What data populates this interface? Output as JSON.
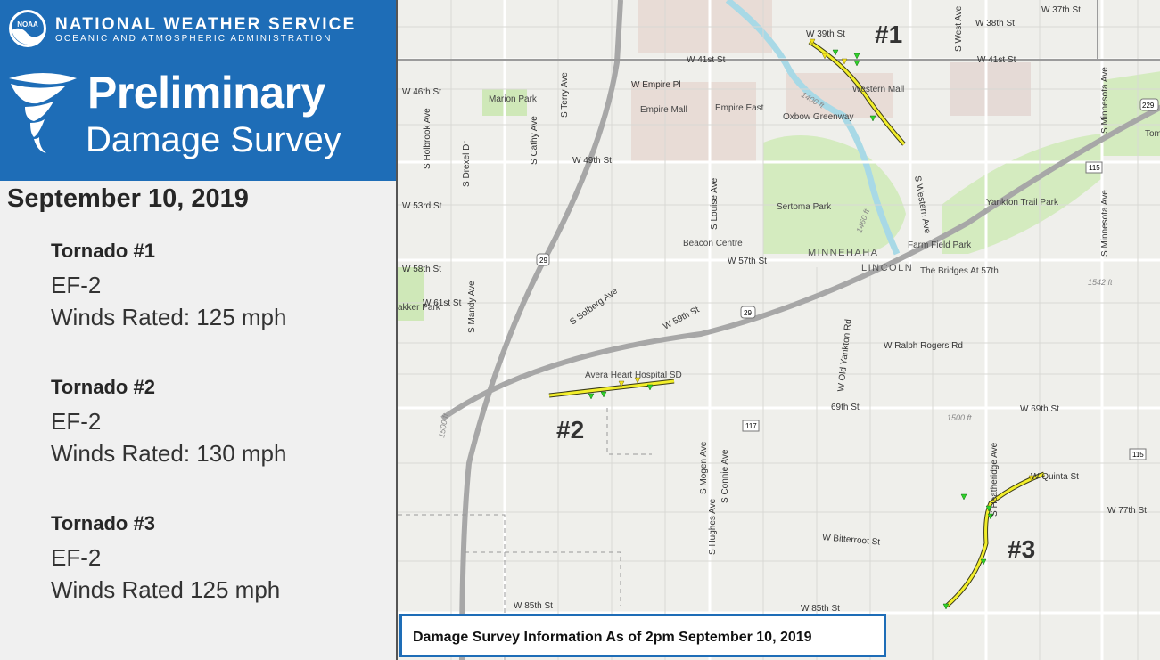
{
  "header": {
    "logo_text": "NOAA",
    "org_name": "NATIONAL WEATHER SERVICE",
    "org_sub": "OCEANIC AND ATMOSPHERIC ADMINISTRATION",
    "title_line1": "Preliminary",
    "title_line2": "Damage Survey"
  },
  "date": "September 10, 2019",
  "tornadoes": [
    {
      "name": "Tornado #1",
      "rating": "EF-2",
      "winds": "Winds Rated: 125 mph"
    },
    {
      "name": "Tornado #2",
      "rating": "EF-2",
      "winds": "Winds Rated: 130 mph"
    },
    {
      "name": "Tornado #3",
      "rating": "EF-2",
      "winds": "Winds Rated 125 mph"
    }
  ],
  "map": {
    "track_labels": [
      "#1",
      "#2",
      "#3"
    ],
    "streets": {
      "w37th": "W 37th St",
      "w38th": "W 38th St",
      "w39th": "W 39th St",
      "w41st_a": "W 41st St",
      "w41st_b": "W 41st St",
      "w46th": "W 46th St",
      "empire_pl": "W Empire Pl",
      "w49th": "W 49th St",
      "w53rd": "W 53rd St",
      "w57th": "W 57th St",
      "w58th": "W 58th St",
      "w59th": "W 59th St",
      "w61st": "W 61st St",
      "solberg": "S Solberg Ave",
      "ralph_rogers": "W Ralph Rogers Rd",
      "old_yankton": "W Old Yankton Rd",
      "s69th": "69th St",
      "w69th": "W 69th St",
      "w77th": "W 77th St",
      "bitterroot": "W Bitterroot St",
      "quinta": "W Quinta St",
      "w85th_a": "W 85th St",
      "w85th_b": "W 85th St",
      "terry": "S Terry Ave",
      "holbrook": "S Holbrook Ave",
      "drexel": "S Drexel Dr",
      "cathy": "S Cathy Ave",
      "louise": "S Louise Ave",
      "mandy": "S Mandy Ave",
      "west_ave": "S West Ave",
      "western": "S Western Ave",
      "minnesota": "S Minnesota Ave",
      "minnesota2": "S Minnesota Ave",
      "heatheridge": "S Heatheridge Ave",
      "mogen": "S Mogen Ave",
      "connie": "S Connie Ave",
      "hughes": "S Hughes Ave"
    },
    "places": {
      "marion_park": "Marion Park",
      "empire_mall": "Empire Mall",
      "empire_east": "Empire East",
      "western_mall": "Western Mall",
      "oxbow": "Oxbow Greenway",
      "sertoma": "Sertoma Park",
      "yankton_trail": "Yankton Trail Park",
      "farm_field": "Farm Field Park",
      "bridges": "The Bridges At 57th",
      "beacon": "Beacon Centre",
      "avera": "Avera Heart Hospital SD",
      "minnehaha": "MINNEHAHA",
      "lincoln": "LINCOLN",
      "tom": "Tom",
      "akker": "akker Park"
    },
    "shields": [
      "29",
      "29",
      "229",
      "115",
      "117",
      "115"
    ],
    "elevations": [
      "1400 ft",
      "1460 ft",
      "1542 ft",
      "1500 ft",
      "1500 ft"
    ]
  },
  "caption": "Damage Survey Information As of 2pm September 10, 2019"
}
